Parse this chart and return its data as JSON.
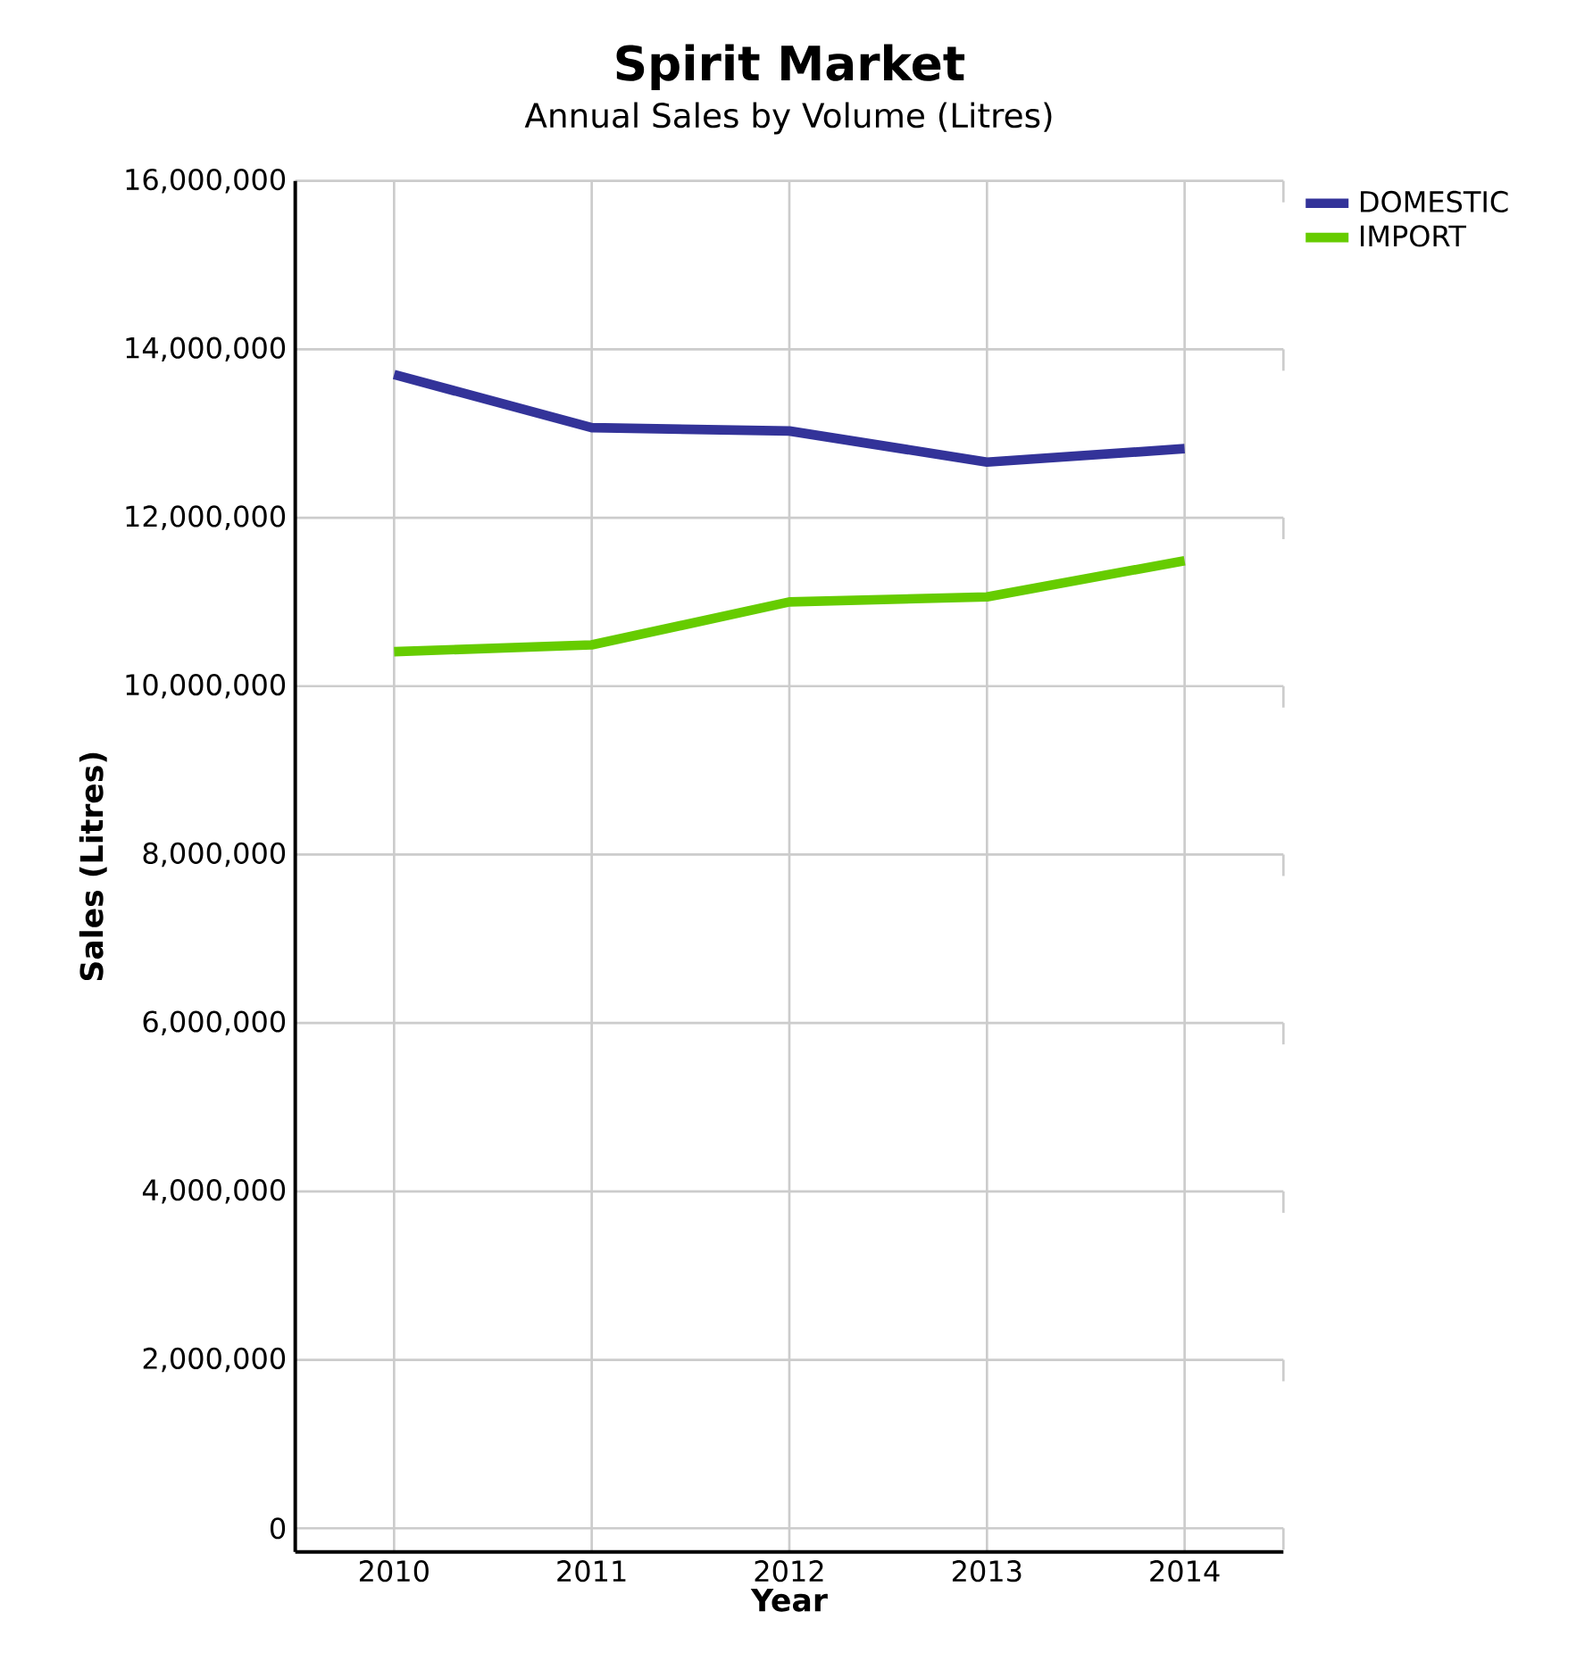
{
  "chart_data": {
    "type": "line",
    "title": "Spirit Market",
    "subtitle": "Annual Sales by Volume (Litres)",
    "xlabel": "Year",
    "ylabel": "Sales (Litres)",
    "categories": [
      "2010",
      "2011",
      "2012",
      "2013",
      "2014"
    ],
    "series": [
      {
        "name": "DOMESTIC",
        "color": "#333399",
        "values": [
          13700000,
          13070000,
          13030000,
          12660000,
          12820000
        ]
      },
      {
        "name": "IMPORT",
        "color": "#66cc00",
        "values": [
          10410000,
          10490000,
          11000000,
          11060000,
          11490000
        ]
      }
    ],
    "ylim": [
      -280000,
      16000000
    ],
    "yticks": [
      {
        "value": 0,
        "label": "0"
      },
      {
        "value": 2000000,
        "label": "2,000,000"
      },
      {
        "value": 4000000,
        "label": "4,000,000"
      },
      {
        "value": 6000000,
        "label": "6,000,000"
      },
      {
        "value": 8000000,
        "label": "8,000,000"
      },
      {
        "value": 10000000,
        "label": "10,000,000"
      },
      {
        "value": 12000000,
        "label": "12,000,000"
      },
      {
        "value": 14000000,
        "label": "14,000,000"
      },
      {
        "value": 16000000,
        "label": "16,000,000"
      }
    ],
    "grid": true,
    "legend": "top right",
    "marker": "none",
    "line_style": "solid"
  }
}
